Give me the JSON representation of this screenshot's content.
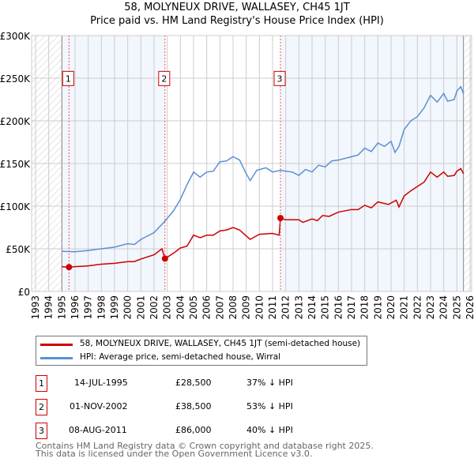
{
  "title": "58, MOLYNEUX DRIVE, WALLASEY, CH45 1JT",
  "subtitle": "Price paid vs. HM Land Registry's House Price Index (HPI)",
  "chart_data": {
    "type": "line",
    "ylim": [
      0,
      300000
    ],
    "xlim": [
      1993,
      2026
    ],
    "yticks": [
      {
        "v": 0,
        "l": "£0"
      },
      {
        "v": 50000,
        "l": "£50K"
      },
      {
        "v": 100000,
        "l": "£100K"
      },
      {
        "v": 150000,
        "l": "£150K"
      },
      {
        "v": 200000,
        "l": "£200K"
      },
      {
        "v": 250000,
        "l": "£250K"
      },
      {
        "v": 300000,
        "l": "£300K"
      }
    ],
    "xticks": [
      "1993",
      "1994",
      "1995",
      "1996",
      "1997",
      "1998",
      "1999",
      "2000",
      "2001",
      "2002",
      "2003",
      "2004",
      "2005",
      "2006",
      "2007",
      "2008",
      "2009",
      "2010",
      "2011",
      "2012",
      "2013",
      "2014",
      "2015",
      "2016",
      "2017",
      "2018",
      "2019",
      "2020",
      "2021",
      "2022",
      "2023",
      "2024",
      "2025",
      "2026"
    ],
    "colors": {
      "property": "#cc0000",
      "hpi": "#5b8fd4"
    },
    "series": [
      {
        "name": "58, MOLYNEUX DRIVE, WALLASEY, CH45 1JT (semi-detached house)",
        "points": [
          [
            1995,
            29
          ],
          [
            1995.5,
            28.5
          ],
          [
            1996,
            29
          ],
          [
            1997,
            30
          ],
          [
            1998,
            32
          ],
          [
            1999,
            33
          ],
          [
            2000,
            35
          ],
          [
            2000.5,
            35
          ],
          [
            2001,
            38
          ],
          [
            2002,
            43
          ],
          [
            2002.6,
            50
          ],
          [
            2002.83,
            38.5
          ],
          [
            2003.5,
            45
          ],
          [
            2004,
            51
          ],
          [
            2004.5,
            53
          ],
          [
            2005,
            66
          ],
          [
            2005.5,
            63
          ],
          [
            2006,
            66
          ],
          [
            2006.5,
            66
          ],
          [
            2007,
            71
          ],
          [
            2007.5,
            72
          ],
          [
            2008,
            75
          ],
          [
            2008.5,
            72
          ],
          [
            2009.3,
            61
          ],
          [
            2010,
            67
          ],
          [
            2011,
            68
          ],
          [
            2011.5,
            66
          ],
          [
            2011.6,
            86
          ],
          [
            2012,
            84
          ],
          [
            2013,
            84
          ],
          [
            2013.3,
            81
          ],
          [
            2014,
            85
          ],
          [
            2014.4,
            83
          ],
          [
            2014.8,
            89
          ],
          [
            2015.3,
            88
          ],
          [
            2016,
            93
          ],
          [
            2017,
            96
          ],
          [
            2017.5,
            96
          ],
          [
            2018,
            101
          ],
          [
            2018.5,
            98
          ],
          [
            2019,
            105
          ],
          [
            2019.8,
            102
          ],
          [
            2020.4,
            107
          ],
          [
            2020.6,
            99
          ],
          [
            2021,
            112
          ],
          [
            2021.5,
            118
          ],
          [
            2022,
            123
          ],
          [
            2022.5,
            128
          ],
          [
            2023,
            140
          ],
          [
            2023.5,
            134
          ],
          [
            2024,
            140
          ],
          [
            2024.3,
            135
          ],
          [
            2024.8,
            136
          ],
          [
            2025,
            141
          ],
          [
            2025.3,
            144
          ],
          [
            2025.5,
            138
          ]
        ]
      },
      {
        "name": "HPI: Average price, semi-detached house, Wirral",
        "points": [
          [
            1995,
            47
          ],
          [
            1996,
            46.5
          ],
          [
            1997,
            48
          ],
          [
            1998,
            50
          ],
          [
            1999,
            52
          ],
          [
            2000,
            56
          ],
          [
            2000.5,
            55
          ],
          [
            2001,
            61
          ],
          [
            2002,
            69
          ],
          [
            2002.8,
            82
          ],
          [
            2003.5,
            95
          ],
          [
            2004,
            108
          ],
          [
            2004.5,
            125
          ],
          [
            2005,
            140
          ],
          [
            2005.5,
            134
          ],
          [
            2006,
            140
          ],
          [
            2006.5,
            141
          ],
          [
            2007,
            152
          ],
          [
            2007.5,
            153
          ],
          [
            2008,
            158
          ],
          [
            2008.5,
            154
          ],
          [
            2009,
            138
          ],
          [
            2009.3,
            130
          ],
          [
            2009.8,
            142
          ],
          [
            2010.5,
            145
          ],
          [
            2011,
            140
          ],
          [
            2011.6,
            142
          ],
          [
            2012,
            141
          ],
          [
            2012.5,
            140
          ],
          [
            2013,
            136
          ],
          [
            2013.5,
            143
          ],
          [
            2014,
            140
          ],
          [
            2014.5,
            148
          ],
          [
            2015,
            146
          ],
          [
            2015.5,
            153
          ],
          [
            2016,
            154
          ],
          [
            2017,
            158
          ],
          [
            2017.5,
            160
          ],
          [
            2018,
            168
          ],
          [
            2018.5,
            164
          ],
          [
            2019,
            174
          ],
          [
            2019.5,
            170
          ],
          [
            2020,
            176
          ],
          [
            2020.3,
            163
          ],
          [
            2020.6,
            170
          ],
          [
            2021,
            190
          ],
          [
            2021.5,
            200
          ],
          [
            2022,
            205
          ],
          [
            2022.5,
            215
          ],
          [
            2023,
            230
          ],
          [
            2023.5,
            222
          ],
          [
            2024,
            232
          ],
          [
            2024.3,
            223
          ],
          [
            2024.8,
            225
          ],
          [
            2025,
            235
          ],
          [
            2025.3,
            240
          ],
          [
            2025.5,
            232
          ]
        ]
      }
    ],
    "sales": [
      {
        "n": "1",
        "x": 1995.54,
        "y": 28500
      },
      {
        "n": "2",
        "x": 2002.83,
        "y": 38500
      },
      {
        "n": "3",
        "x": 2011.6,
        "y": 86000
      }
    ]
  },
  "legend": {
    "property": "58, MOLYNEUX DRIVE, WALLASEY, CH45 1JT (semi-detached house)",
    "hpi": "HPI: Average price, semi-detached house, Wirral"
  },
  "sales_table": [
    {
      "n": "1",
      "date": "14-JUL-1995",
      "price": "£28,500",
      "hpi": "37% ↓ HPI"
    },
    {
      "n": "2",
      "date": "01-NOV-2002",
      "price": "£38,500",
      "hpi": "53% ↓ HPI"
    },
    {
      "n": "3",
      "date": "08-AUG-2011",
      "price": "£86,000",
      "hpi": "40% ↓ HPI"
    }
  ],
  "footer": {
    "line1": "Contains HM Land Registry data © Crown copyright and database right 2025.",
    "line2": "This data is licensed under the Open Government Licence v3.0."
  }
}
